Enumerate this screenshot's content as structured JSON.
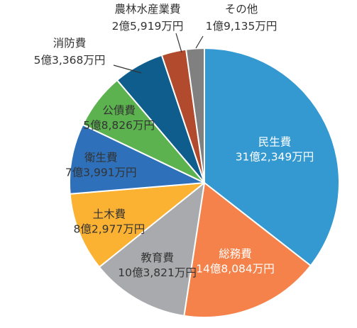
{
  "chart_data": {
    "type": "pie",
    "title": "",
    "start_angle_deg": 0,
    "direction": "clockwise",
    "slices": [
      {
        "label": "民生費",
        "value_text": "31億2,349万円",
        "value": 312349,
        "color": "#3399d0",
        "label_color": "#ffffff",
        "label_placement": "inside"
      },
      {
        "label": "総務費",
        "value_text": "14億8,084万円",
        "value": 148084,
        "color": "#f4824a",
        "label_color": "#ffffff",
        "label_placement": "inside"
      },
      {
        "label": "教育費",
        "value_text": "10億3,821万円",
        "value": 103821,
        "color": "#a9aaad",
        "label_color": "#333333",
        "label_placement": "inside"
      },
      {
        "label": "土木費",
        "value_text": "8億2,977万円",
        "value": 82977,
        "color": "#fbb131",
        "label_color": "#333333",
        "label_placement": "inside"
      },
      {
        "label": "衛生費",
        "value_text": "7億3,991万円",
        "value": 73991,
        "color": "#2e70b9",
        "label_color": "#333333",
        "label_placement": "inside"
      },
      {
        "label": "公債費",
        "value_text": "5億8,826万円",
        "value": 58826,
        "color": "#5bb24f",
        "label_color": "#333333",
        "label_placement": "inside"
      },
      {
        "label": "消防費",
        "value_text": "5億3,368万円",
        "value": 53368,
        "color": "#0e5d8c",
        "label_color": "#333333",
        "label_placement": "outside"
      },
      {
        "label": "農林水産業費",
        "value_text": "2億5,919万円",
        "value": 25919,
        "color": "#b24b2e",
        "label_color": "#333333",
        "label_placement": "outside"
      },
      {
        "label": "その他",
        "value_text": "1億9,135万円",
        "value": 19135,
        "color": "#808080",
        "label_color": "#333333",
        "label_placement": "outside"
      }
    ]
  }
}
